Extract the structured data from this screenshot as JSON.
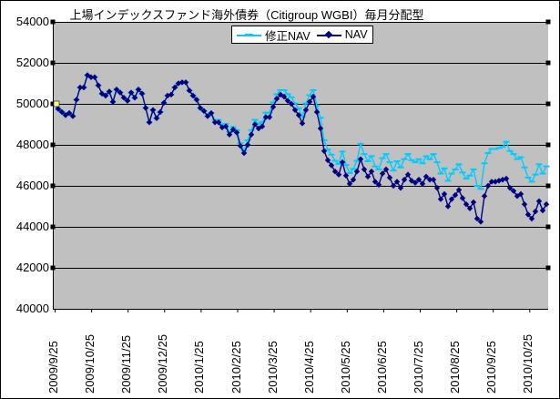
{
  "chart": {
    "title": "上場インデックスファンド海外債券（Citigroup WGBI）毎月分配型"
  },
  "chart_data": {
    "type": "line",
    "title": "上場インデックスファンド海外債券（Citigroup WGBI）毎月分配型",
    "legend_position": "top-center",
    "grid": "horizontal",
    "plot_background": "#C0C0C0",
    "gridline_color": "#000000",
    "ylim": [
      40000,
      54000
    ],
    "y_ticks": [
      40000,
      42000,
      44000,
      46000,
      48000,
      50000,
      52000,
      54000
    ],
    "x_tick_labels": [
      "2009/9/25",
      "2009/10/25",
      "2009/11/25",
      "2009/12/25",
      "2010/1/25",
      "2010/2/25",
      "2010/3/25",
      "2010/4/25",
      "2010/5/25",
      "2010/6/25",
      "2010/7/25",
      "2010/8/25",
      "2010/9/25",
      "2010/10/25"
    ],
    "first_point_highlight_color": "#FFFF66",
    "series": [
      {
        "name": "修正NAV",
        "color": "#00CCFF",
        "marker": "dash",
        "values": [
          50000,
          49750,
          49600,
          49450,
          49550,
          49400,
          50200,
          50800,
          50800,
          51400,
          51300,
          51300,
          50900,
          50500,
          50400,
          50600,
          50100,
          50700,
          50550,
          50300,
          50150,
          50550,
          50300,
          50700,
          50500,
          49800,
          49100,
          49700,
          49300,
          49600,
          50050,
          50400,
          50450,
          50800,
          51000,
          51050,
          51050,
          50650,
          50400,
          50200,
          49800,
          49650,
          49400,
          49550,
          49220,
          49220,
          48970,
          49020,
          48620,
          48870,
          48720,
          48070,
          47720,
          48220,
          48720,
          49220,
          49020,
          49120,
          49570,
          49570,
          50070,
          50470,
          50670,
          50670,
          50470,
          50320,
          50020,
          49770,
          49370,
          50020,
          50420,
          50670,
          49920,
          49320,
          48220,
          47770,
          47520,
          47220,
          47070,
          47670,
          47020,
          46620,
          46820,
          47220,
          48050,
          47550,
          47200,
          47450,
          46950,
          46800,
          47350,
          47550,
          47150,
          46750,
          47200,
          46900,
          47300,
          47550,
          47250,
          47150,
          47300,
          47100,
          47450,
          47300,
          47550,
          47150,
          46600,
          46850,
          46250,
          46600,
          46800,
          47050,
          46650,
          46350,
          46500,
          46800,
          46000,
          45850,
          47100,
          47600,
          47800,
          47800,
          47850,
          47900,
          48150,
          47700,
          47550,
          47300,
          47400,
          46900,
          46400,
          46200,
          46550,
          47050,
          46600,
          46950
        ]
      },
      {
        "name": "NAV",
        "color": "#000080",
        "marker": "diamond",
        "values": [
          50000,
          49750,
          49600,
          49450,
          49550,
          49400,
          50200,
          50800,
          50800,
          51400,
          51300,
          51300,
          50900,
          50500,
          50400,
          50600,
          50100,
          50700,
          50550,
          50300,
          50150,
          50550,
          50300,
          50700,
          50500,
          49800,
          49100,
          49700,
          49300,
          49600,
          50050,
          50400,
          50450,
          50800,
          51000,
          51050,
          51050,
          50650,
          50400,
          50200,
          49800,
          49650,
          49400,
          49550,
          49100,
          49100,
          48850,
          48900,
          48500,
          48750,
          48600,
          47950,
          47600,
          48000,
          48500,
          49000,
          48800,
          48900,
          49350,
          49350,
          49850,
          50250,
          50450,
          50350,
          50150,
          50000,
          49700,
          49450,
          49050,
          49700,
          50100,
          50350,
          49600,
          48800,
          47700,
          47250,
          47000,
          46700,
          46550,
          47150,
          46500,
          46100,
          46300,
          46700,
          47300,
          46800,
          46450,
          46700,
          46200,
          46050,
          46600,
          46800,
          46400,
          46000,
          46200,
          45900,
          46300,
          46550,
          46250,
          46150,
          46300,
          46100,
          46450,
          46300,
          46300,
          45900,
          45350,
          45600,
          45000,
          45350,
          45550,
          45800,
          45400,
          45100,
          44900,
          45200,
          44400,
          44250,
          45500,
          46000,
          46200,
          46200,
          46250,
          46300,
          46350,
          45900,
          45750,
          45500,
          45600,
          45100,
          44600,
          44400,
          44750,
          45250,
          44800,
          45100
        ]
      }
    ]
  }
}
